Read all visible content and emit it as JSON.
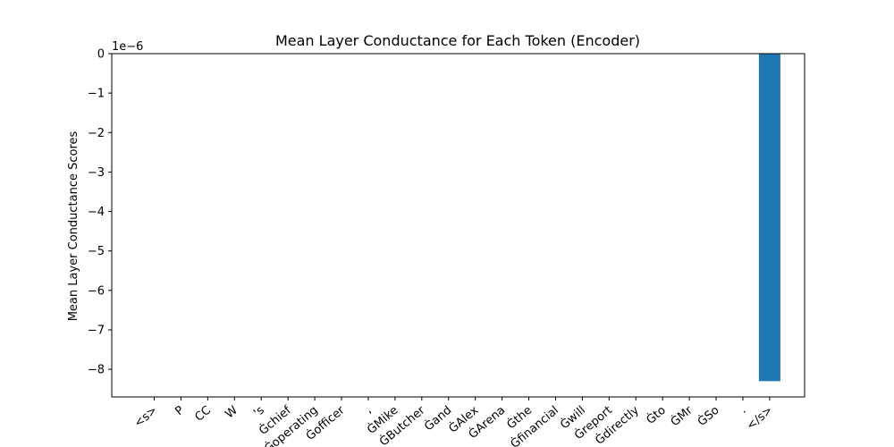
{
  "chart_data": {
    "type": "bar",
    "title": "Mean Layer Conductance for Each Token (Encoder)",
    "xlabel": "",
    "ylabel": "Mean Layer Conductance Scores",
    "y_scale_label": "1e−6",
    "y_scale": 1e-06,
    "ylim": [
      -8.7,
      0
    ],
    "y_ticks": [
      0,
      -1,
      -2,
      -3,
      -4,
      -5,
      -6,
      -7,
      -8
    ],
    "y_tick_labels": [
      "0",
      "−1",
      "−2",
      "−3",
      "−4",
      "−5",
      "−6",
      "−7",
      "−8"
    ],
    "categories": [
      "<s>",
      "P",
      "CC",
      "W",
      "'s",
      "Ġchief",
      "Ġoperating",
      "Ġofficer",
      ",",
      "ĠMike",
      "ĠButcher",
      "Ġand",
      "ĠAlex",
      "ĠArena",
      "Ġthe",
      "Ġfinancial",
      "Ġwill",
      "Ġreport",
      "Ġdirectly",
      "Ġto",
      "ĠMr",
      "ĠSo",
      ".",
      "</s>"
    ],
    "values": [
      0,
      0,
      0,
      0,
      0,
      0,
      0,
      0,
      0,
      0,
      0,
      0,
      0,
      0,
      0,
      0,
      0,
      0,
      0,
      0,
      0,
      0,
      0,
      -8.3
    ],
    "bar_color": "#1f77b4",
    "grid": false,
    "legend": "none"
  }
}
